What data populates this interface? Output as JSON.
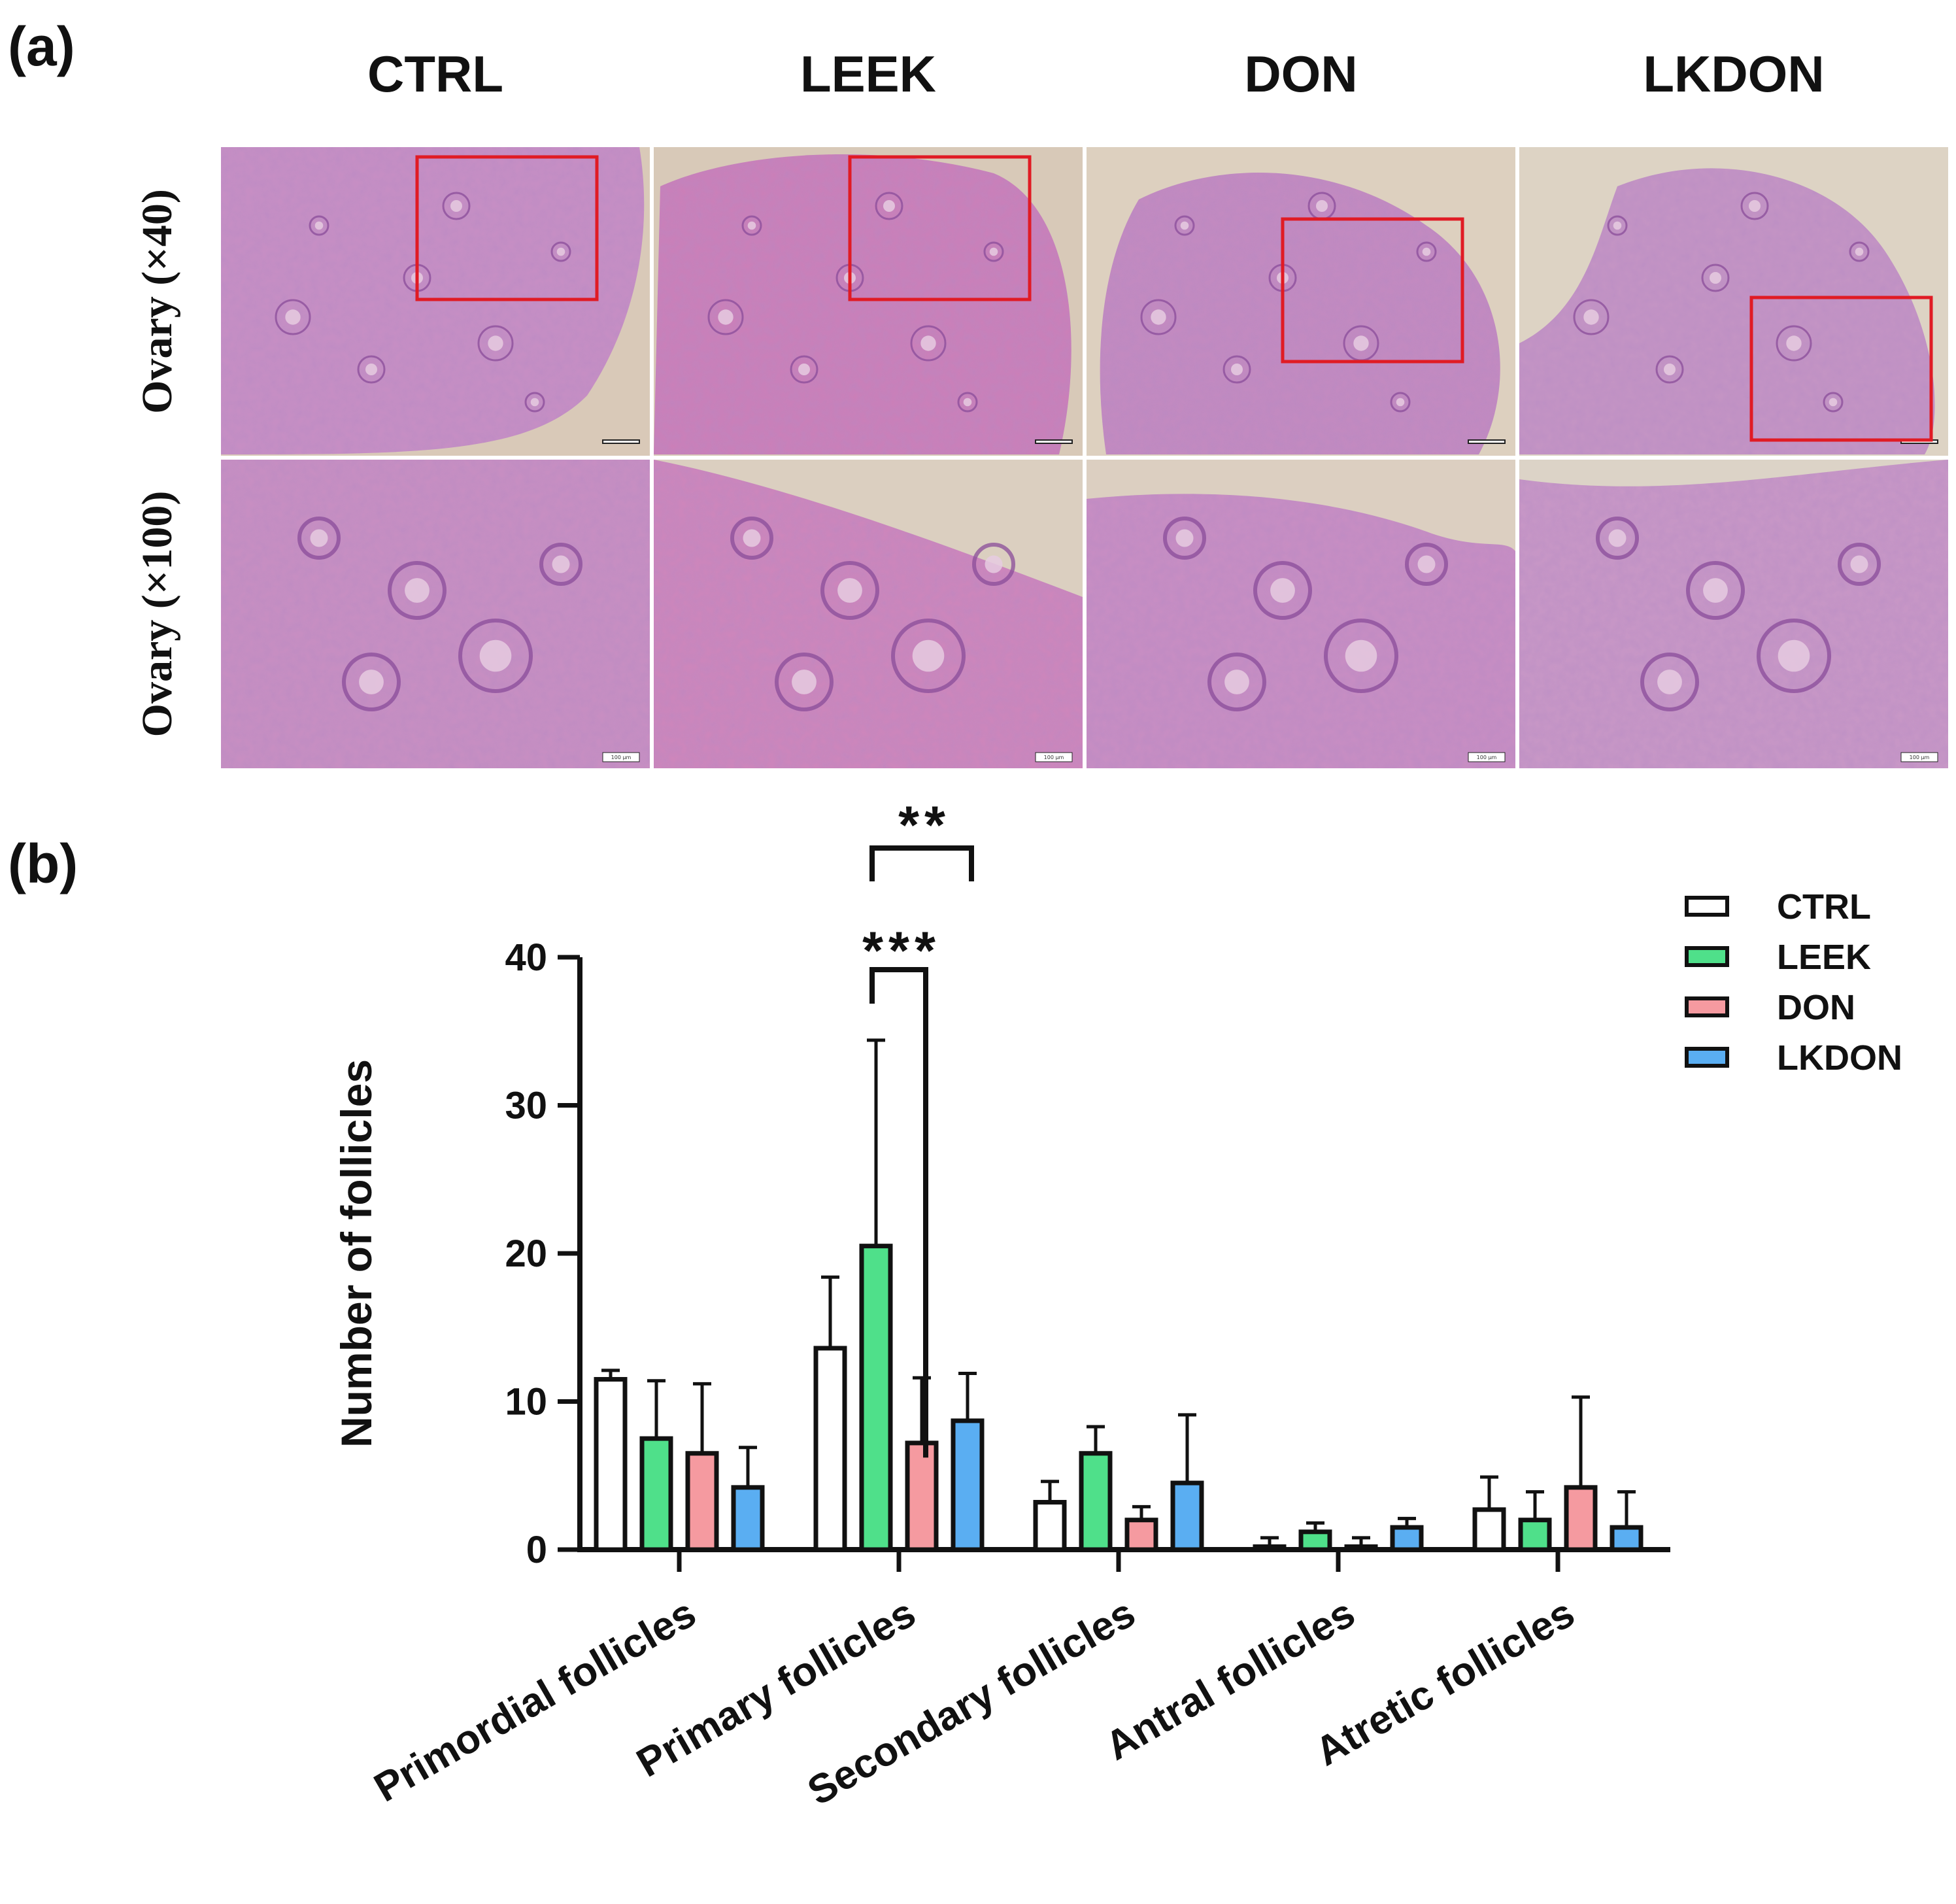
{
  "panel_a": {
    "label": "(a)",
    "columns": [
      "CTRL",
      "LEEK",
      "DON",
      "LKDON"
    ],
    "rows": [
      "Ovary (×40)",
      "Ovary (×100)"
    ],
    "scale_bar_text": "100 μm",
    "images": [
      {
        "name": "ctrl-x40",
        "tissue_fill": "#c88fc4",
        "bg_fill": "#d9c9b8",
        "roi": "top-right"
      },
      {
        "name": "leek-x40",
        "tissue_fill": "#cc7fb8",
        "bg_fill": "#d8c9b8",
        "roi": "top-center"
      },
      {
        "name": "don-x40",
        "tissue_fill": "#c48ac0",
        "bg_fill": "#ddd0bf",
        "roi": "center"
      },
      {
        "name": "lkdon-x40",
        "tissue_fill": "#c595c4",
        "bg_fill": "#ddd3c4",
        "roi": "bottom-right"
      },
      {
        "name": "ctrl-x100",
        "tissue_fill": "#c98fc2",
        "bg_fill": "#d8c8b8"
      },
      {
        "name": "leek-x100",
        "tissue_fill": "#cf86bb",
        "bg_fill": "#dbcfc0"
      },
      {
        "name": "don-x100",
        "tissue_fill": "#c98ec3",
        "bg_fill": "#dccfc1"
      },
      {
        "name": "lkdon-x100",
        "tissue_fill": "#c998c6",
        "bg_fill": "#dcd3c7"
      }
    ],
    "roi_color": "#e01b24"
  },
  "panel_b": {
    "label": "(b)"
  },
  "chart_data": {
    "type": "bar",
    "categories": [
      "Primordial follicles",
      "Primary follicles",
      "Secondary follicles",
      "Antral follicles",
      "Atretic follicles"
    ],
    "series": [
      {
        "name": "CTRL",
        "color": "#ffffff",
        "values": [
          11.5,
          13.6,
          3.2,
          0.2,
          2.7
        ],
        "errors": [
          0.6,
          4.8,
          1.4,
          0.6,
          2.2
        ]
      },
      {
        "name": "LEEK",
        "color": "#4fe08a",
        "values": [
          7.5,
          20.5,
          6.5,
          1.2,
          2.0
        ],
        "errors": [
          3.9,
          13.9,
          1.8,
          0.6,
          1.9
        ]
      },
      {
        "name": "DON",
        "color": "#f59aa0",
        "values": [
          6.5,
          7.2,
          2.0,
          0.2,
          4.2
        ],
        "errors": [
          4.7,
          4.4,
          0.9,
          0.6,
          6.1
        ]
      },
      {
        "name": "LKDON",
        "color": "#5aaef2",
        "values": [
          4.2,
          8.7,
          4.5,
          1.5,
          1.5
        ],
        "errors": [
          2.7,
          3.2,
          4.6,
          0.6,
          2.4
        ]
      }
    ],
    "ylabel": "Number of follicles",
    "ylim": [
      0,
      40
    ],
    "yticks": [
      0,
      10,
      20,
      30,
      40
    ],
    "grid": false,
    "legend_position": "top-right",
    "significance": [
      {
        "category": "Primary follicles",
        "from": "LEEK",
        "to": "DON",
        "label": "***"
      },
      {
        "category": "Primary follicles",
        "from": "LEEK",
        "to": "LKDON",
        "label": "**"
      }
    ]
  }
}
